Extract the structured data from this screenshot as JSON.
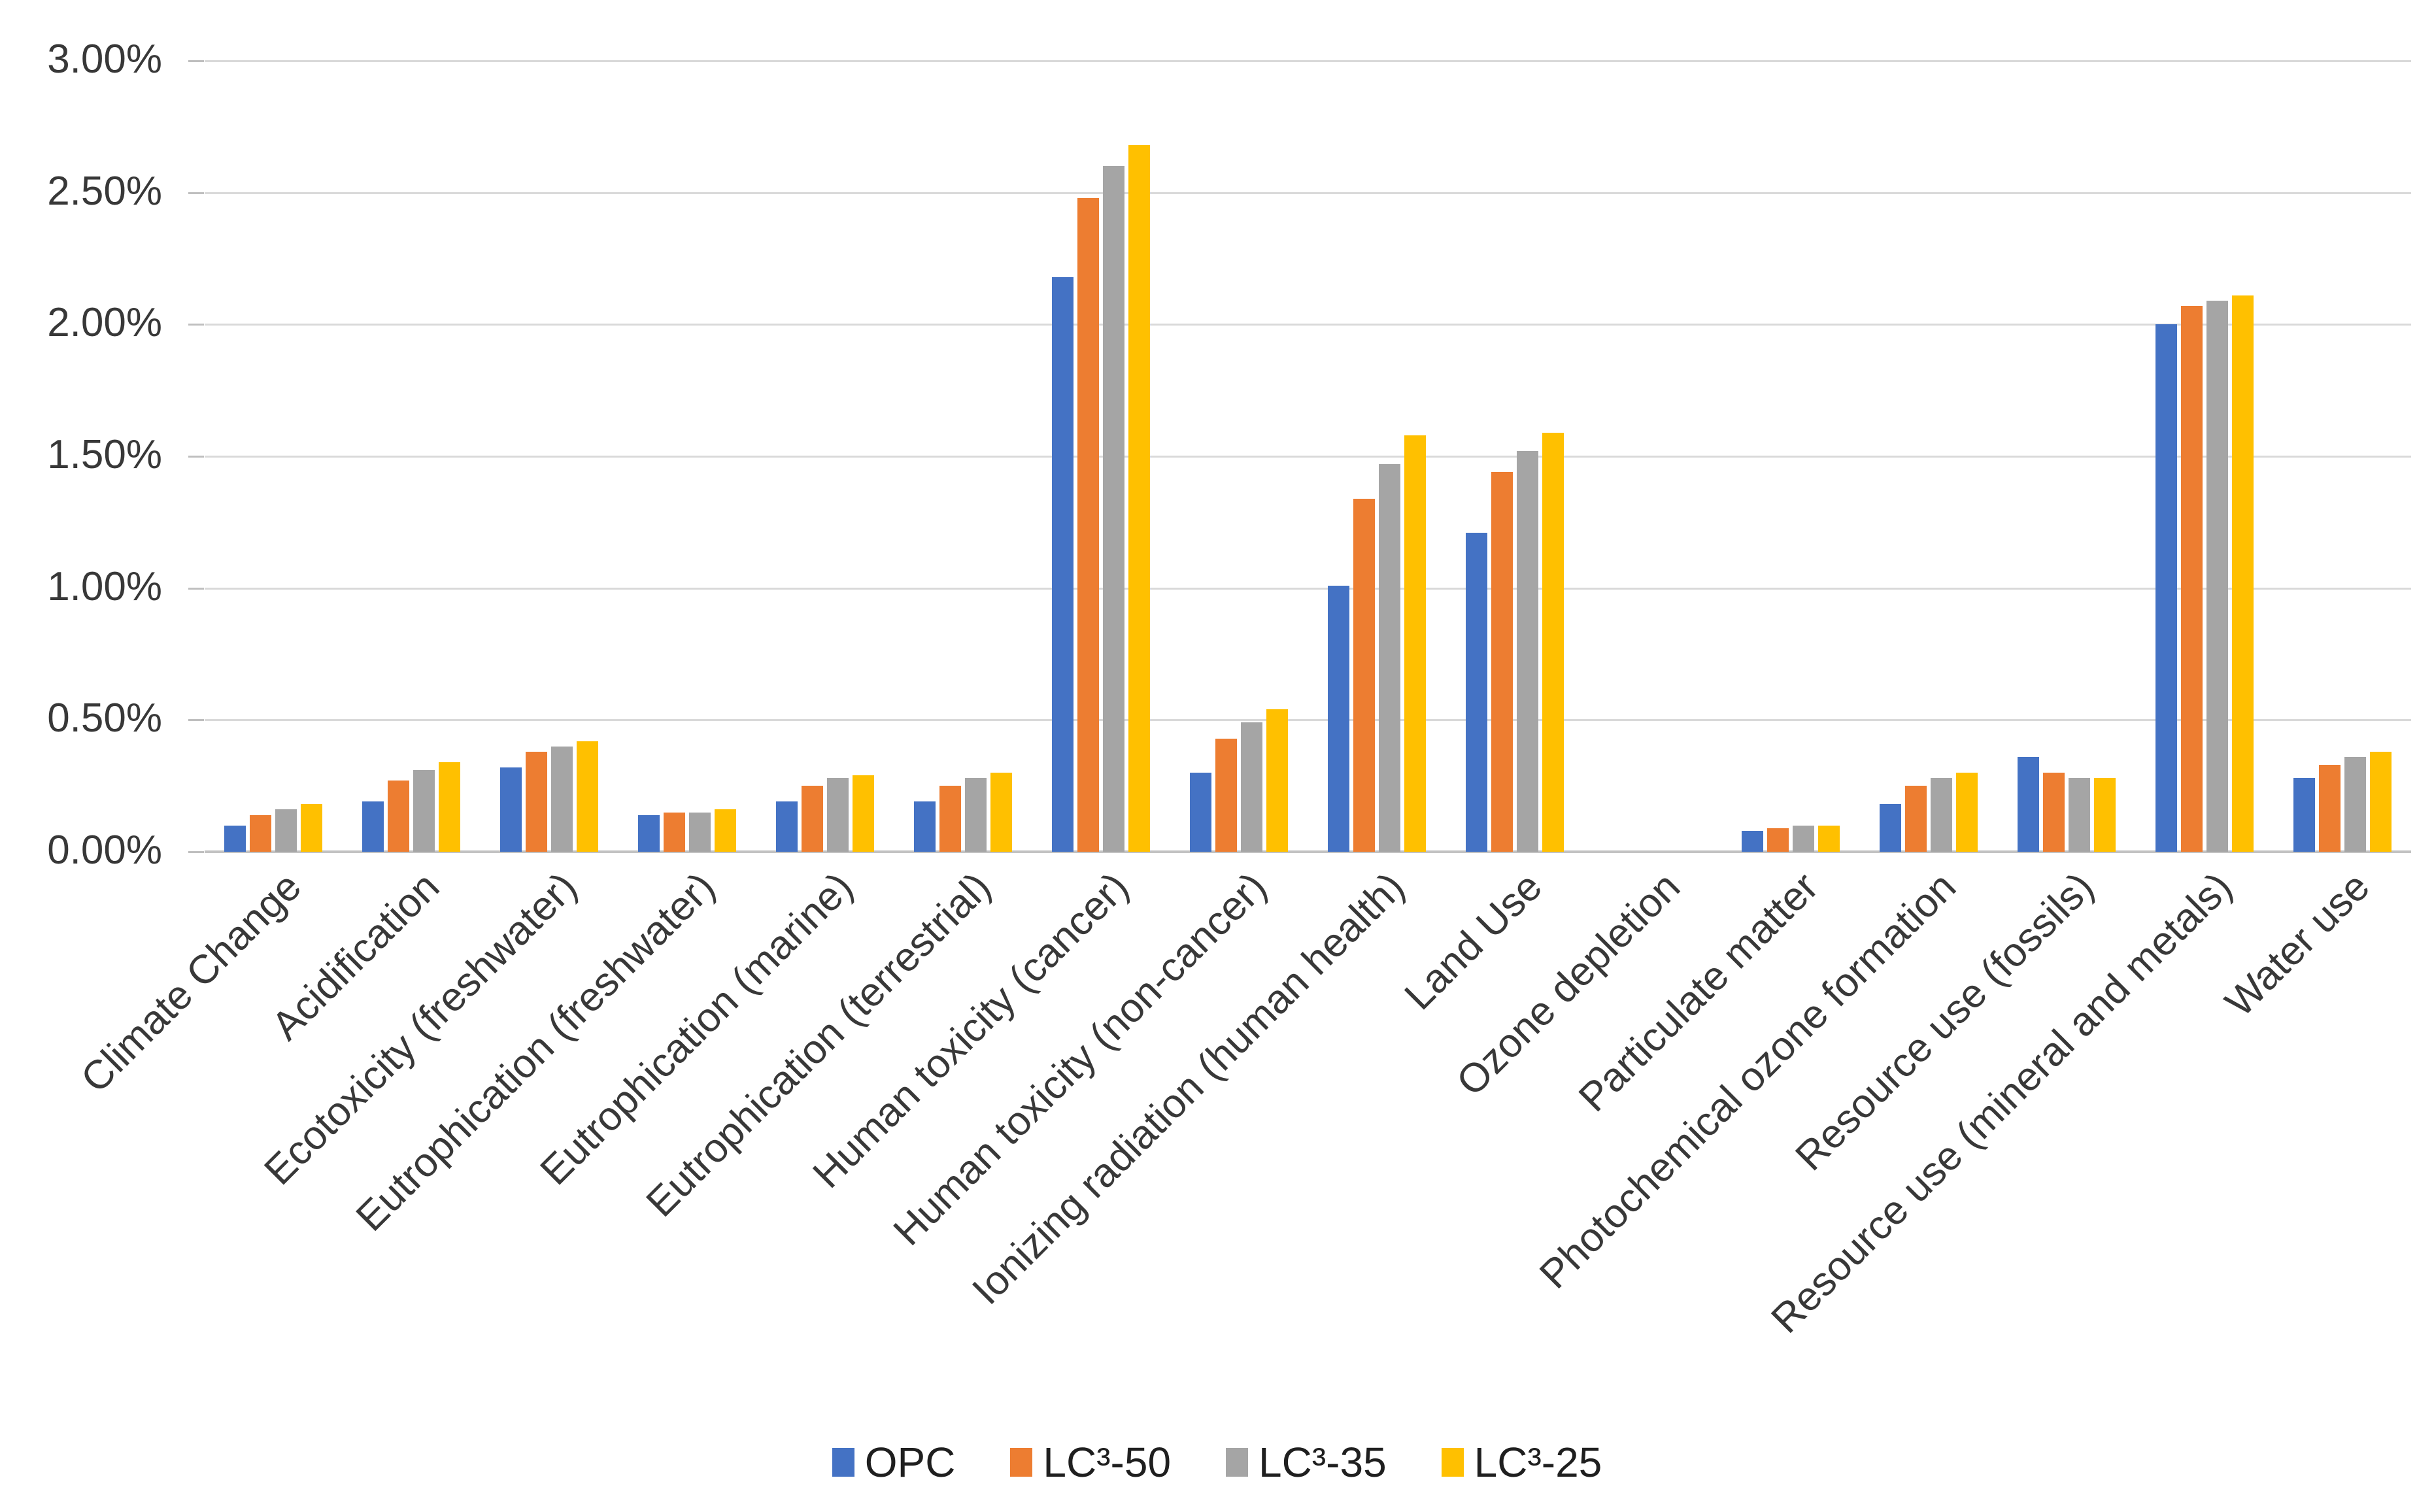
{
  "chart_data": {
    "type": "bar",
    "title": "",
    "categories": [
      "Climate Change",
      "Acidification",
      "Ecotoxicity (freshwater)",
      "Eutrophication (freshwater)",
      "Eutrophication (marine)",
      "Eutrophication (terrestrial)",
      "Human toxicity (cancer)",
      "Human toxicity (non-cancer)",
      "Ionizing radiation (human health)",
      "Land Use",
      "Ozone depletion",
      "Particulate matter",
      "Photochemical ozone formation",
      "Resource use (fossils)",
      "Resource use (mineral and metals)",
      "Water use"
    ],
    "series": [
      {
        "name": "OPC",
        "color": "#4472C4",
        "values": [
          0.1,
          0.19,
          0.32,
          0.14,
          0.19,
          0.19,
          2.18,
          0.3,
          1.01,
          1.21,
          0.0,
          0.08,
          0.18,
          0.36,
          2.0,
          0.28
        ]
      },
      {
        "name": "LC³-50",
        "color": "#ED7D31",
        "values": [
          0.14,
          0.27,
          0.38,
          0.15,
          0.25,
          0.25,
          2.48,
          0.43,
          1.34,
          1.44,
          0.0,
          0.09,
          0.25,
          0.3,
          2.07,
          0.33
        ]
      },
      {
        "name": "LC³-35",
        "color": "#A5A5A5",
        "values": [
          0.16,
          0.31,
          0.4,
          0.15,
          0.28,
          0.28,
          2.6,
          0.49,
          1.47,
          1.52,
          0.0,
          0.1,
          0.28,
          0.28,
          2.09,
          0.36
        ]
      },
      {
        "name": "LC³-25",
        "color": "#FFC000",
        "values": [
          0.18,
          0.34,
          0.42,
          0.16,
          0.29,
          0.3,
          2.68,
          0.54,
          1.58,
          1.59,
          0.0,
          0.1,
          0.3,
          0.28,
          2.11,
          0.38
        ]
      }
    ],
    "y_axis": {
      "min": 0,
      "max": 3,
      "step": 0.5,
      "tick_labels": [
        "0.00%",
        "0.50%",
        "1.00%",
        "1.50%",
        "2.00%",
        "2.50%",
        "3.00%"
      ],
      "unit": "%"
    },
    "xlabel": "",
    "ylabel": "",
    "grid": true,
    "legend_position": "bottom",
    "colors": {
      "gridline": "#D9D9D9",
      "axis_line": "#C2C2C2",
      "tick_mark": "#BFBFBF",
      "text": "#383838",
      "background": "#FFFFFF"
    }
  }
}
